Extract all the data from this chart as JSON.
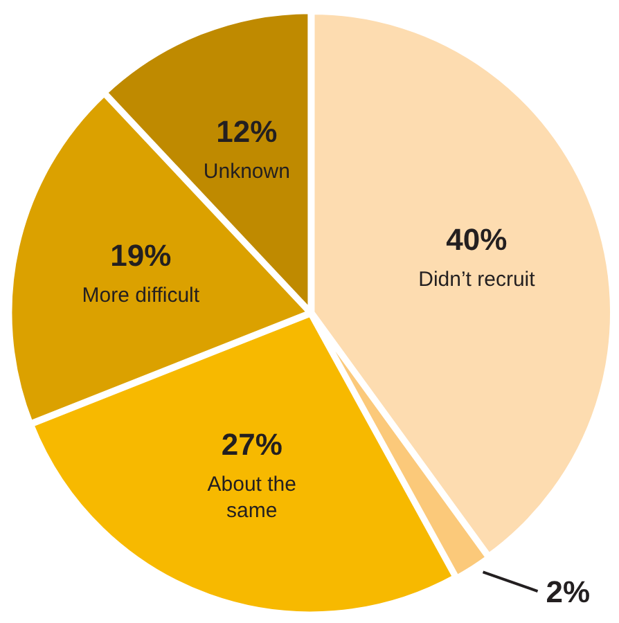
{
  "chart_data": {
    "type": "pie",
    "categories": [
      "Didn’t recruit",
      null,
      "About the same",
      "More difficult",
      "Unknown"
    ],
    "values": [
      40,
      2,
      27,
      19,
      12
    ],
    "value_labels": [
      "40%",
      "2%",
      "27%",
      "19%",
      "12%"
    ],
    "colors": [
      "#fddcb0",
      "#fbc97a",
      "#f7b900",
      "#dba100",
      "#bf8a00"
    ],
    "legend": false
  }
}
